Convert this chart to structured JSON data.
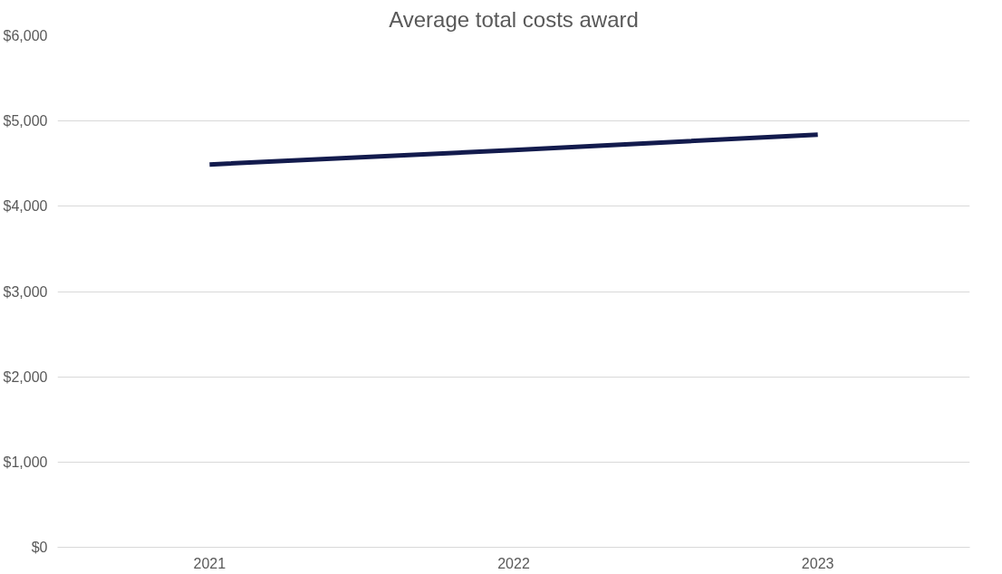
{
  "chart_data": {
    "type": "line",
    "title": "Average total costs award",
    "categories": [
      "2021",
      "2022",
      "2023"
    ],
    "series": [
      {
        "color": "#131b4d",
        "values": [
          4490,
          4660,
          4840
        ]
      }
    ],
    "ylim": [
      0,
      6000
    ],
    "yticks": [
      {
        "value": 0,
        "label": "$0"
      },
      {
        "value": 1000,
        "label": "$1,000"
      },
      {
        "value": 2000,
        "label": "$2,000"
      },
      {
        "value": 3000,
        "label": "$3,000"
      },
      {
        "value": 4000,
        "label": "$4,000"
      },
      {
        "value": 5000,
        "label": "$5,000"
      },
      {
        "value": 6000,
        "label": "$6,000"
      }
    ],
    "grid": "y",
    "marker": "none",
    "line_style": "solid"
  }
}
